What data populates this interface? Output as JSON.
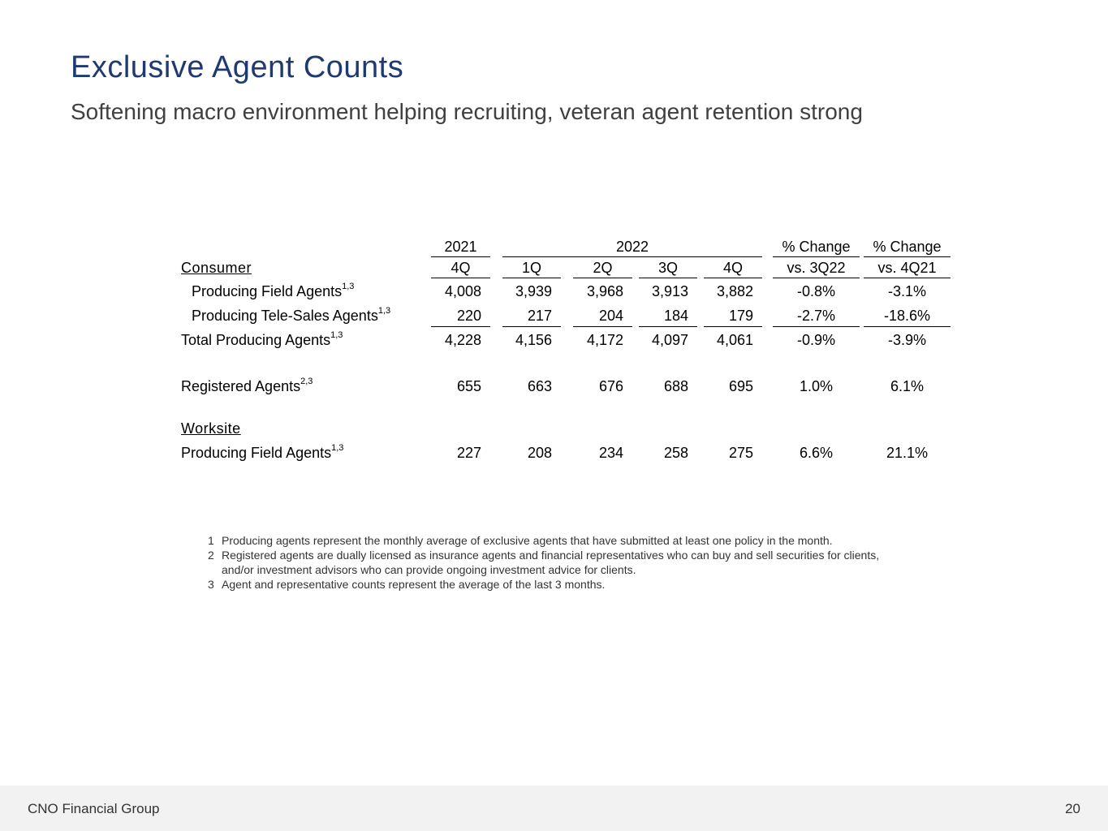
{
  "title": "Exclusive Agent Counts",
  "subtitle": "Softening macro environment helping recruiting, veteran agent retention strong",
  "table": {
    "year_headers": {
      "y2021": "2021",
      "y2022": "2022",
      "chg1": "% Change",
      "chg2": "% Change"
    },
    "col_headers": [
      "4Q",
      "1Q",
      "2Q",
      "3Q",
      "4Q",
      "vs. 3Q22",
      "vs. 4Q21"
    ],
    "section_consumer": "Consumer",
    "section_worksite": "Worksite",
    "rows": [
      {
        "label": "Producing Field Agents",
        "sup": "1,3",
        "values": [
          "4,008",
          "3,939",
          "3,968",
          "3,913",
          "3,882",
          "-0.8%",
          "-3.1%"
        ]
      },
      {
        "label": "Producing Tele-Sales Agents",
        "sup": "1,3",
        "values": [
          "220",
          "217",
          "204",
          "184",
          "179",
          "-2.7%",
          "-18.6%"
        ]
      },
      {
        "label": "Total Producing Agents",
        "sup": "1,3",
        "values": [
          "4,228",
          "4,156",
          "4,172",
          "4,097",
          "4,061",
          "-0.9%",
          "-3.9%"
        ]
      },
      {
        "label": "Registered Agents",
        "sup": "2,3",
        "values": [
          "655",
          "663",
          "676",
          "688",
          "695",
          "1.0%",
          "6.1%"
        ]
      },
      {
        "label": "Producing Field Agents",
        "sup": "1,3",
        "values": [
          "227",
          "208",
          "234",
          "258",
          "275",
          "6.6%",
          "21.1%"
        ]
      }
    ]
  },
  "footnotes": [
    {
      "num": "1",
      "text": "Producing agents represent the monthly average of exclusive agents that have submitted at least one policy in the month."
    },
    {
      "num": "2",
      "text": "Registered agents are dually licensed as insurance agents and financial representatives who can buy and sell securities for clients, and/or investment advisors who can provide ongoing investment advice for clients."
    },
    {
      "num": "3",
      "text": "Agent and representative counts represent the average of the last 3 months."
    }
  ],
  "footer": {
    "company": "CNO Financial Group",
    "page": "20"
  }
}
